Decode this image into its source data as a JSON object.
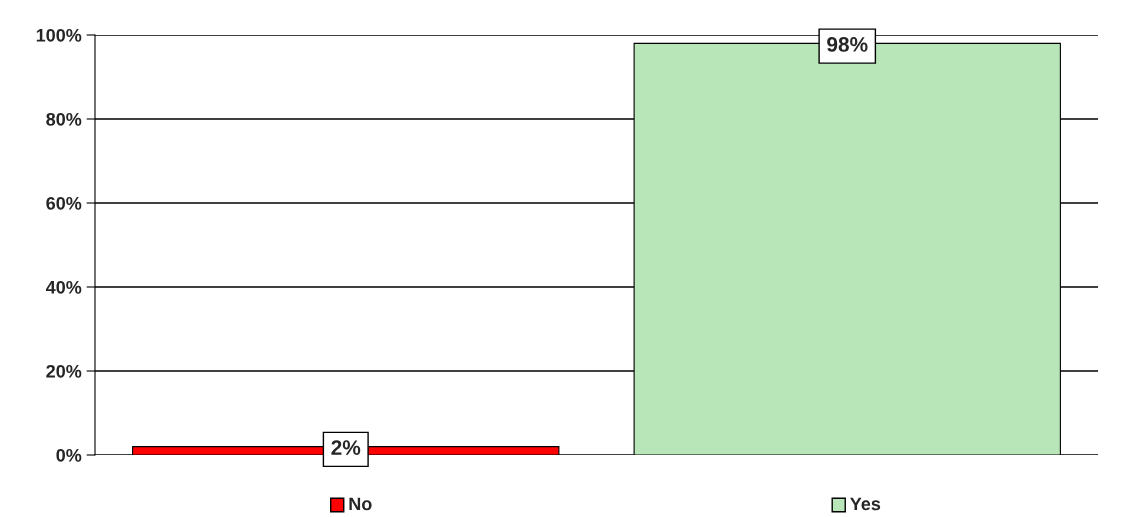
{
  "chart_data": {
    "type": "bar",
    "categories": [
      "No",
      "Yes"
    ],
    "values": [
      2,
      98
    ],
    "colors": [
      "#ff0000",
      "#b8e6b8"
    ],
    "value_labels": [
      "2%",
      "98%"
    ],
    "ylim": [
      0,
      100
    ],
    "yticks": [
      {
        "value": 0,
        "label": "0%"
      },
      {
        "value": 20,
        "label": "20%"
      },
      {
        "value": 40,
        "label": "40%"
      },
      {
        "value": 60,
        "label": "60%"
      },
      {
        "value": 80,
        "label": "80%"
      },
      {
        "value": 100,
        "label": "100%"
      }
    ],
    "grid": "y",
    "legend": false
  }
}
